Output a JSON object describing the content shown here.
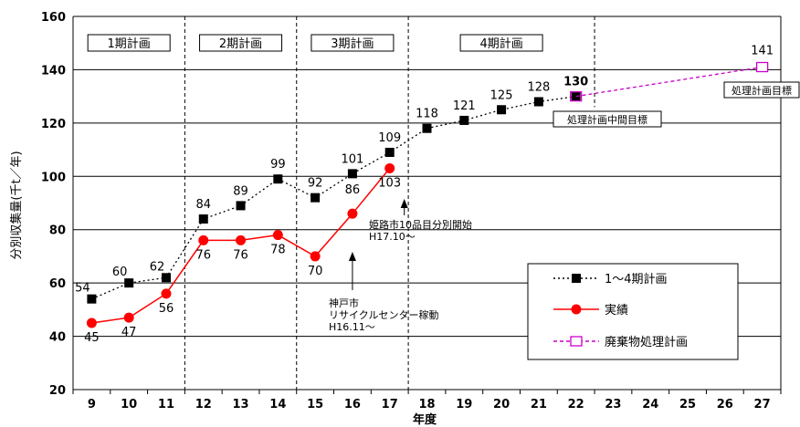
{
  "chart_data": {
    "type": "line",
    "title": "",
    "xlabel": "年度",
    "ylabel": "分別収集量(千t／年)",
    "x": [
      9,
      10,
      11,
      12,
      13,
      14,
      15,
      16,
      17,
      18,
      19,
      20,
      21,
      22,
      23,
      24,
      25,
      26,
      27
    ],
    "ylim": [
      20,
      160
    ],
    "yticks": [
      20,
      40,
      60,
      80,
      100,
      120,
      140,
      160
    ],
    "grid": "horizontal",
    "series": [
      {
        "name": "1～4期計画",
        "style": "dotted",
        "color": "#000000",
        "marker": "square",
        "x": [
          9,
          10,
          11,
          12,
          13,
          14,
          15,
          16,
          17,
          18,
          19,
          20,
          21,
          22
        ],
        "values": [
          54,
          60,
          62,
          84,
          89,
          99,
          92,
          101,
          109,
          118,
          121,
          125,
          128,
          130
        ]
      },
      {
        "name": "実績",
        "style": "solid",
        "color": "#ff0000",
        "marker": "circle",
        "x": [
          9,
          10,
          11,
          12,
          13,
          14,
          15,
          16,
          17
        ],
        "values": [
          45,
          47,
          56,
          76,
          76,
          78,
          70,
          86,
          103
        ]
      },
      {
        "name": "廃棄物処理計画",
        "style": "dashed",
        "color": "#cc00cc",
        "marker": "hollow-square",
        "x": [
          22,
          27
        ],
        "values": [
          130,
          141
        ]
      }
    ],
    "periods": [
      {
        "label": "1期計画",
        "from": 8.5,
        "to": 11.5
      },
      {
        "label": "2期計画",
        "from": 11.5,
        "to": 14.5
      },
      {
        "label": "3期計画",
        "from": 14.5,
        "to": 17.5
      },
      {
        "label": "4期計画",
        "from": 17.5,
        "to": 22.5
      }
    ],
    "annotations": [
      {
        "id": "kobe",
        "lines": [
          "神戸市",
          "リサイクルセンター稼動",
          "H16.11～"
        ],
        "x": 16
      },
      {
        "id": "himeji",
        "lines": [
          "姫路市10品目分別開始",
          "H17.10～"
        ],
        "x": 17
      },
      {
        "id": "mid-target",
        "text": "処理計画中間目標",
        "x": 22
      },
      {
        "id": "target",
        "text": "処理計画目標",
        "x": 27
      }
    ],
    "legend": {
      "placement": "bottom-right",
      "entries": [
        "1～4期計画",
        "実績",
        "廃棄物処理計画"
      ]
    }
  }
}
